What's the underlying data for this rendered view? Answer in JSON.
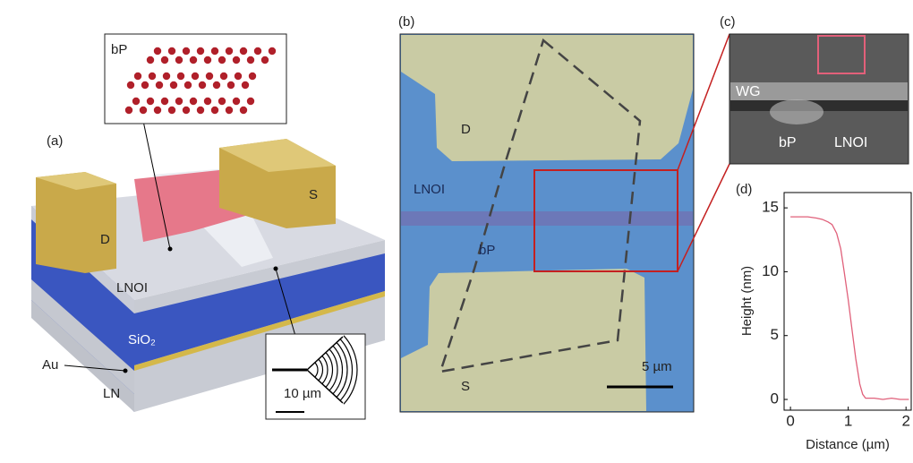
{
  "panel_a": {
    "label": "(a)",
    "inset_top": {
      "label": "bP"
    },
    "pad_d": "D",
    "pad_s": "S",
    "layer_lnoi": "LNOI",
    "layer_sio2": "SiO₂",
    "layer_au": "Au",
    "layer_ln": "LN",
    "inset_bottom": {
      "scale": "10 µm"
    }
  },
  "panel_b": {
    "label": "(b)",
    "pad_d": "D",
    "lnoi": "LNOI",
    "bp": "bP",
    "pad_s": "S",
    "scale": "5 µm"
  },
  "panel_c": {
    "label": "(c)",
    "wg": "WG",
    "bp": "bP",
    "lnoi": "LNOI"
  },
  "panel_d": {
    "label": "(d)",
    "type": "line",
    "xlabel": "Distance (µm)",
    "ylabel": "Height (nm)",
    "x": [
      0,
      0.15,
      0.3,
      0.45,
      0.55,
      0.65,
      0.72,
      0.8,
      0.87,
      0.93,
      1.0,
      1.07,
      1.13,
      1.2,
      1.25,
      1.3,
      1.45,
      1.6,
      1.75,
      1.9,
      2.05
    ],
    "values": [
      14.3,
      14.3,
      14.3,
      14.2,
      14.1,
      13.9,
      13.7,
      13.0,
      11.8,
      10.0,
      7.8,
      5.3,
      3.2,
      1.2,
      0.4,
      0.1,
      0.1,
      0.0,
      0.1,
      0.0,
      0.0
    ],
    "color": "#e0607a",
    "xlim": [
      -0.11,
      2.09
    ],
    "ylim": [
      -0.84,
      16.2
    ],
    "xticks": [
      0,
      1,
      2
    ],
    "yticks": [
      0,
      5,
      10,
      15
    ]
  }
}
